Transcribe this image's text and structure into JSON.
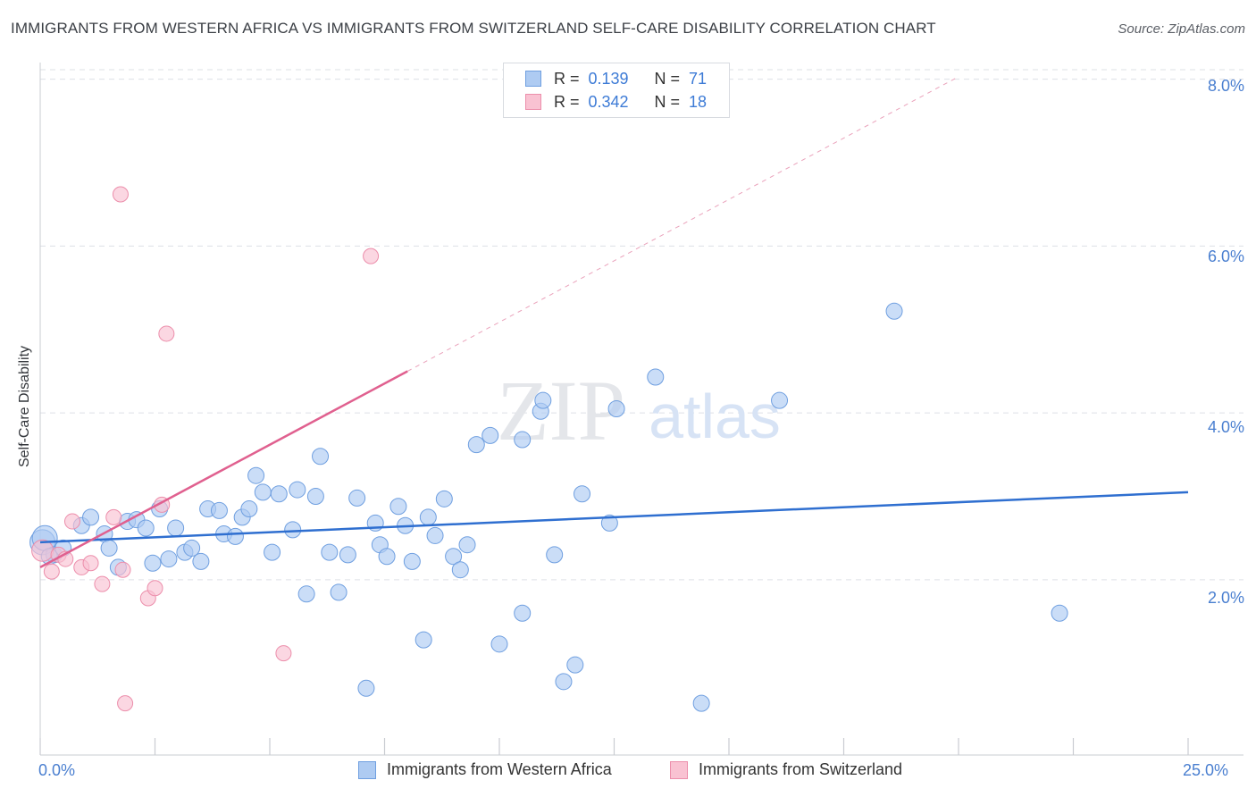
{
  "title": "IMMIGRANTS FROM WESTERN AFRICA VS IMMIGRANTS FROM SWITZERLAND SELF-CARE DISABILITY CORRELATION CHART",
  "source_prefix": "Source: ",
  "source_link": "ZipAtlas.com",
  "watermark": {
    "zip": "ZIP",
    "atlas": "atlas"
  },
  "legend_stats": [
    {
      "r_label": "R =",
      "r_value": "0.139",
      "n_label": "N =",
      "n_value": "71"
    },
    {
      "r_label": "R =",
      "r_value": "0.342",
      "n_label": "N =",
      "n_value": "18"
    }
  ],
  "colors": {
    "blue_fill": "#aecbf2",
    "blue_stroke": "#6f9fe0",
    "blue_line": "#2f6fd0",
    "pink_fill": "#f9c2d2",
    "pink_stroke": "#ec8eab",
    "pink_line": "#e0608f",
    "tick_label": "#4a7fd0",
    "grid": "#dde0e6"
  },
  "chart_data": {
    "type": "scatter",
    "title": "IMMIGRANTS FROM WESTERN AFRICA VS IMMIGRANTS FROM SWITZERLAND SELF-CARE DISABILITY CORRELATION CHART",
    "xlabel": "",
    "ylabel": "Self-Care Disability",
    "xlim": [
      0,
      25
    ],
    "ylim": [
      -0.1,
      8.2
    ],
    "x_tick_labels": [
      "0.0%",
      "25.0%"
    ],
    "y_ticks": [
      2,
      4,
      6,
      8
    ],
    "y_tick_labels": [
      "2.0%",
      "4.0%",
      "6.0%",
      "8.0%"
    ],
    "grid": true,
    "legend_position": "bottom",
    "series": [
      {
        "name": "Immigrants from Western Africa",
        "color": "#aecbf2",
        "points": [
          [
            0.05,
            2.45
          ],
          [
            0.1,
            2.5
          ],
          [
            0.3,
            2.3
          ],
          [
            0.5,
            2.38
          ],
          [
            0.9,
            2.65
          ],
          [
            1.1,
            2.75
          ],
          [
            1.4,
            2.55
          ],
          [
            1.5,
            2.38
          ],
          [
            1.7,
            2.15
          ],
          [
            1.9,
            2.7
          ],
          [
            2.1,
            2.72
          ],
          [
            2.3,
            2.62
          ],
          [
            2.45,
            2.2
          ],
          [
            2.6,
            2.85
          ],
          [
            2.8,
            2.25
          ],
          [
            2.95,
            2.62
          ],
          [
            3.15,
            2.33
          ],
          [
            3.3,
            2.38
          ],
          [
            3.5,
            2.22
          ],
          [
            3.65,
            2.85
          ],
          [
            3.9,
            2.83
          ],
          [
            4.0,
            2.55
          ],
          [
            4.25,
            2.52
          ],
          [
            4.4,
            2.75
          ],
          [
            4.55,
            2.85
          ],
          [
            4.7,
            3.25
          ],
          [
            4.85,
            3.05
          ],
          [
            5.05,
            2.33
          ],
          [
            5.2,
            3.03
          ],
          [
            5.5,
            2.6
          ],
          [
            5.6,
            3.08
          ],
          [
            5.8,
            1.83
          ],
          [
            6.0,
            3.0
          ],
          [
            6.1,
            3.48
          ],
          [
            6.3,
            2.33
          ],
          [
            6.5,
            1.85
          ],
          [
            6.7,
            2.3
          ],
          [
            6.9,
            2.98
          ],
          [
            7.1,
            0.7
          ],
          [
            7.3,
            2.68
          ],
          [
            7.4,
            2.42
          ],
          [
            7.55,
            2.28
          ],
          [
            7.8,
            2.88
          ],
          [
            7.95,
            2.65
          ],
          [
            8.1,
            2.22
          ],
          [
            8.35,
            1.28
          ],
          [
            8.45,
            2.75
          ],
          [
            8.6,
            2.53
          ],
          [
            8.8,
            2.97
          ],
          [
            9.0,
            2.28
          ],
          [
            9.15,
            2.12
          ],
          [
            9.3,
            2.42
          ],
          [
            9.5,
            3.62
          ],
          [
            9.8,
            3.73
          ],
          [
            10.0,
            1.23
          ],
          [
            10.5,
            3.68
          ],
          [
            10.5,
            1.6
          ],
          [
            10.9,
            4.02
          ],
          [
            10.95,
            4.15
          ],
          [
            11.2,
            2.3
          ],
          [
            11.4,
            0.78
          ],
          [
            11.65,
            0.98
          ],
          [
            11.8,
            3.03
          ],
          [
            12.4,
            2.68
          ],
          [
            12.55,
            4.05
          ],
          [
            13.4,
            4.43
          ],
          [
            14.4,
            0.52
          ],
          [
            16.1,
            4.15
          ],
          [
            18.6,
            5.22
          ],
          [
            22.2,
            1.6
          ],
          [
            0.2,
            2.28
          ]
        ],
        "trend": {
          "x": [
            0,
            25
          ],
          "y": [
            2.45,
            3.05
          ]
        }
      },
      {
        "name": "Immigrants from Switzerland",
        "color": "#f9c2d2",
        "points": [
          [
            0.05,
            2.35
          ],
          [
            0.25,
            2.1
          ],
          [
            0.4,
            2.3
          ],
          [
            0.7,
            2.7
          ],
          [
            0.9,
            2.15
          ],
          [
            1.1,
            2.2
          ],
          [
            1.35,
            1.95
          ],
          [
            1.6,
            2.75
          ],
          [
            1.75,
            6.62
          ],
          [
            1.8,
            2.12
          ],
          [
            1.85,
            0.52
          ],
          [
            2.35,
            1.78
          ],
          [
            2.5,
            1.9
          ],
          [
            2.65,
            2.9
          ],
          [
            2.75,
            4.95
          ],
          [
            5.3,
            1.12
          ],
          [
            7.2,
            5.88
          ],
          [
            0.55,
            2.25
          ]
        ],
        "trend": {
          "x": [
            0,
            8.0
          ],
          "y": [
            2.15,
            4.5
          ]
        },
        "trend_extension": {
          "x": [
            8.0,
            20.0
          ],
          "y": [
            4.5,
            8.03
          ]
        }
      }
    ]
  }
}
